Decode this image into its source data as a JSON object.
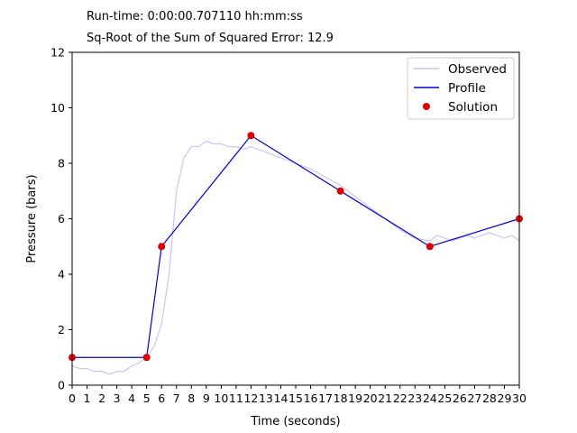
{
  "header": {
    "runtime_label": "Run-time:",
    "runtime_value": "0:00:00.707110",
    "runtime_unit": "hh:mm:ss",
    "sse_label": "Sq-Root of the Sum of Squared Error:",
    "sse_value": "12.9"
  },
  "colors": {
    "observed": "#c9c6f0",
    "profile": "#0000cc",
    "solution": "#dd0000"
  },
  "chart_data": {
    "type": "line",
    "xlabel": "Time (seconds)",
    "ylabel": "Pressure (bars)",
    "xlim": [
      0,
      30
    ],
    "ylim": [
      0,
      12
    ],
    "xticks": [
      0,
      1,
      2,
      3,
      4,
      5,
      6,
      7,
      8,
      9,
      10,
      11,
      12,
      13,
      14,
      15,
      16,
      17,
      18,
      19,
      20,
      21,
      22,
      23,
      24,
      25,
      26,
      27,
      28,
      29,
      30
    ],
    "yticks": [
      0,
      2,
      4,
      6,
      8,
      10,
      12
    ],
    "grid": false,
    "legend_position": "top-right",
    "series": [
      {
        "name": "Observed",
        "x": [
          0,
          0.5,
          1,
          1.5,
          2,
          2.5,
          3,
          3.5,
          4,
          4.5,
          5,
          5.5,
          6,
          6.5,
          7,
          7.5,
          8,
          8.5,
          9,
          9.5,
          10,
          10.5,
          11,
          11.5,
          12,
          12.5,
          13,
          13.5,
          14,
          14.5,
          15,
          16,
          17,
          18,
          19,
          20,
          21,
          22,
          23,
          24,
          24.5,
          25,
          25.5,
          26,
          26.5,
          27,
          27.5,
          28,
          28.5,
          29,
          29.5,
          30
        ],
        "y": [
          0.7,
          0.6,
          0.6,
          0.5,
          0.5,
          0.4,
          0.5,
          0.5,
          0.7,
          0.8,
          1.0,
          1.4,
          2.2,
          4.0,
          7.0,
          8.2,
          8.6,
          8.6,
          8.8,
          8.7,
          8.7,
          8.6,
          8.6,
          8.5,
          8.6,
          8.5,
          8.4,
          8.3,
          8.2,
          8.1,
          8.0,
          7.8,
          7.5,
          7.2,
          6.8,
          6.4,
          6.0,
          5.6,
          5.3,
          5.2,
          5.4,
          5.3,
          5.2,
          5.3,
          5.4,
          5.3,
          5.4,
          5.5,
          5.4,
          5.3,
          5.4,
          5.2
        ]
      },
      {
        "name": "Profile",
        "x": [
          0,
          5,
          6,
          12,
          18,
          24,
          30
        ],
        "y": [
          1,
          1,
          5,
          9,
          7,
          5,
          6
        ]
      },
      {
        "name": "Solution",
        "x": [
          0,
          5,
          6,
          12,
          18,
          24,
          30
        ],
        "y": [
          1,
          1,
          5,
          9,
          7,
          5,
          6
        ]
      }
    ]
  }
}
